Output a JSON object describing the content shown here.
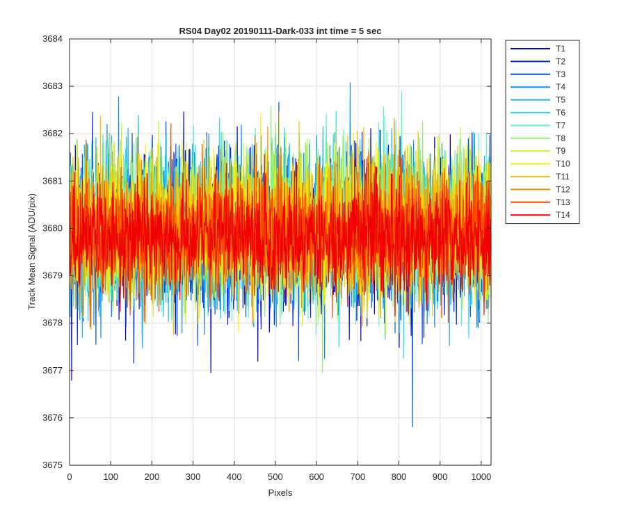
{
  "chart_data": {
    "type": "line",
    "title": "RS04 Day02 20190111-Dark-033 int time = 5 sec",
    "xlabel": "Pixels",
    "ylabel": "Track Mean Signal (ADU/pix)",
    "xlim": [
      0,
      1024
    ],
    "ylim": [
      3675,
      3684
    ],
    "xticks": [
      0,
      100,
      200,
      300,
      400,
      500,
      600,
      700,
      800,
      900,
      1000
    ],
    "yticks": [
      3675,
      3676,
      3677,
      3678,
      3679,
      3680,
      3681,
      3682,
      3683,
      3684
    ],
    "grid": true,
    "legend_position": "outside-top-right",
    "n_points": 1024,
    "series": [
      {
        "name": "T1",
        "color": "#0000c8",
        "center": 3679.9,
        "spread": 0.95
      },
      {
        "name": "T2",
        "color": "#0020e6",
        "center": 3679.9,
        "spread": 0.95
      },
      {
        "name": "T3",
        "color": "#0050f0",
        "center": 3679.95,
        "spread": 0.95
      },
      {
        "name": "T4",
        "color": "#0a8cf0",
        "center": 3680.0,
        "spread": 0.95
      },
      {
        "name": "T5",
        "color": "#16b6f0",
        "center": 3680.0,
        "spread": 0.92
      },
      {
        "name": "T6",
        "color": "#20e0f0",
        "center": 3680.05,
        "spread": 0.92
      },
      {
        "name": "T7",
        "color": "#60f0d0",
        "center": 3680.05,
        "spread": 0.92
      },
      {
        "name": "T8",
        "color": "#90f070",
        "center": 3680.1,
        "spread": 0.92
      },
      {
        "name": "T9",
        "color": "#c8f040",
        "center": 3680.1,
        "spread": 0.9
      },
      {
        "name": "T10",
        "color": "#f5f000",
        "center": 3680.05,
        "spread": 0.9
      },
      {
        "name": "T11",
        "color": "#f8c000",
        "center": 3680.0,
        "spread": 0.85
      },
      {
        "name": "T12",
        "color": "#fa8c00",
        "center": 3679.95,
        "spread": 0.8
      },
      {
        "name": "T13",
        "color": "#fa4600",
        "center": 3679.9,
        "spread": 0.75
      },
      {
        "name": "T14",
        "color": "#f00000",
        "center": 3679.85,
        "spread": 0.65
      }
    ]
  }
}
